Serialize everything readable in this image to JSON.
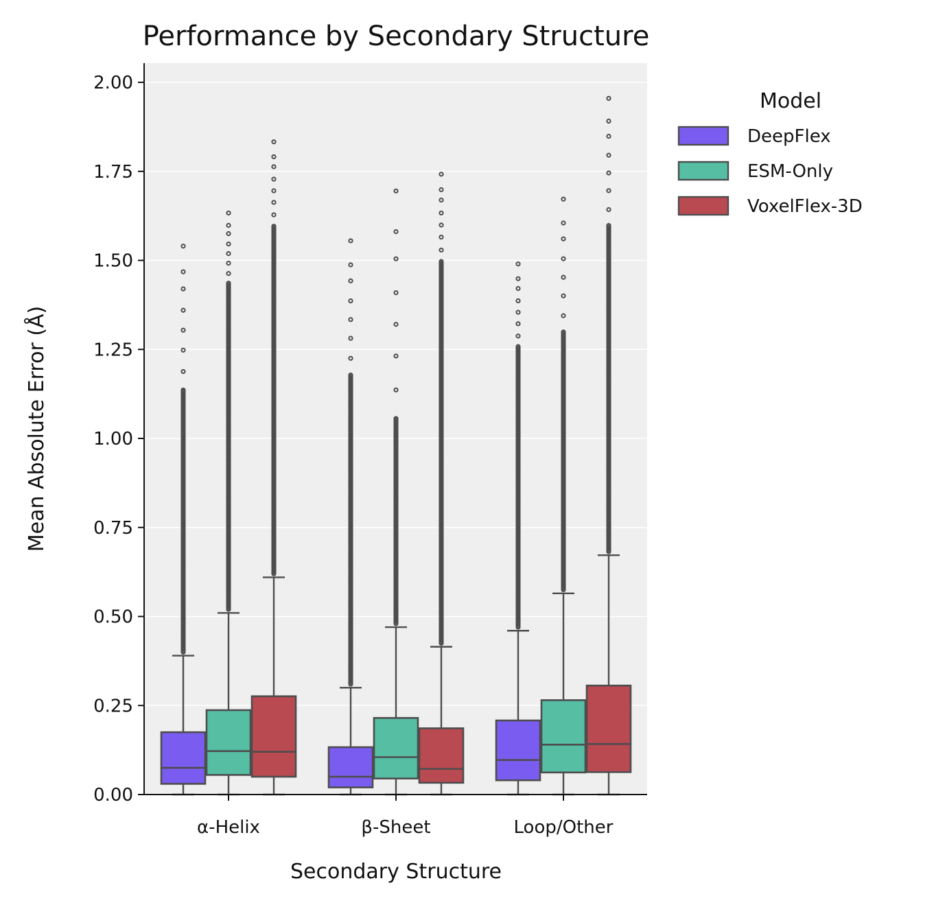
{
  "chart_data": {
    "type": "box",
    "title": "Performance by Secondary Structure",
    "xlabel": "Secondary Structure",
    "ylabel": "Mean Absolute Error (Å)",
    "ylim": [
      0,
      2.05
    ],
    "yticks": [
      "0.00",
      "0.25",
      "0.50",
      "0.75",
      "1.00",
      "1.25",
      "1.50",
      "1.75",
      "2.00"
    ],
    "grid": "horizontal",
    "categories": [
      "α-Helix",
      "β-Sheet",
      "Loop/Other"
    ],
    "legend": {
      "title": "Model",
      "placement": "upper-right, outside plot"
    },
    "series": [
      {
        "name": "DeepFlex",
        "color": "#7b5cf0",
        "boxes": [
          {
            "category": "α-Helix",
            "whisker_low": 0.0,
            "q1": 0.03,
            "median": 0.075,
            "q3": 0.175,
            "whisker_high": 0.39,
            "outlier_max": 1.54,
            "outlier_dense_until": 1.14
          },
          {
            "category": "β-Sheet",
            "whisker_low": 0.0,
            "q1": 0.02,
            "median": 0.05,
            "q3": 0.133,
            "whisker_high": 0.3,
            "outlier_max": 1.555,
            "outlier_dense_until": 1.18
          },
          {
            "category": "Loop/Other",
            "whisker_low": 0.0,
            "q1": 0.04,
            "median": 0.097,
            "q3": 0.208,
            "whisker_high": 0.46,
            "outlier_max": 1.49,
            "outlier_dense_until": 1.26
          }
        ]
      },
      {
        "name": "ESM-Only",
        "color": "#55bea3",
        "boxes": [
          {
            "category": "α-Helix",
            "whisker_low": 0.0,
            "q1": 0.055,
            "median": 0.122,
            "q3": 0.237,
            "whisker_high": 0.51,
            "outlier_max": 1.633,
            "outlier_dense_until": 1.44
          },
          {
            "category": "β-Sheet",
            "whisker_low": 0.0,
            "q1": 0.045,
            "median": 0.105,
            "q3": 0.215,
            "whisker_high": 0.47,
            "outlier_max": 1.695,
            "outlier_dense_until": 1.06
          },
          {
            "category": "Loop/Other",
            "whisker_low": 0.0,
            "q1": 0.062,
            "median": 0.14,
            "q3": 0.265,
            "whisker_high": 0.565,
            "outlier_max": 1.672,
            "outlier_dense_until": 1.3
          }
        ]
      },
      {
        "name": "VoxelFlex-3D",
        "color": "#b94a52",
        "boxes": [
          {
            "category": "α-Helix",
            "whisker_low": 0.0,
            "q1": 0.05,
            "median": 0.12,
            "q3": 0.276,
            "whisker_high": 0.61,
            "outlier_max": 1.833,
            "outlier_dense_until": 1.6
          },
          {
            "category": "β-Sheet",
            "whisker_low": 0.0,
            "q1": 0.033,
            "median": 0.072,
            "q3": 0.186,
            "whisker_high": 0.415,
            "outlier_max": 1.742,
            "outlier_dense_until": 1.5
          },
          {
            "category": "Loop/Other",
            "whisker_low": 0.0,
            "q1": 0.063,
            "median": 0.142,
            "q3": 0.306,
            "whisker_high": 0.672,
            "outlier_max": 1.955,
            "outlier_dense_until": 1.6
          }
        ]
      }
    ]
  }
}
